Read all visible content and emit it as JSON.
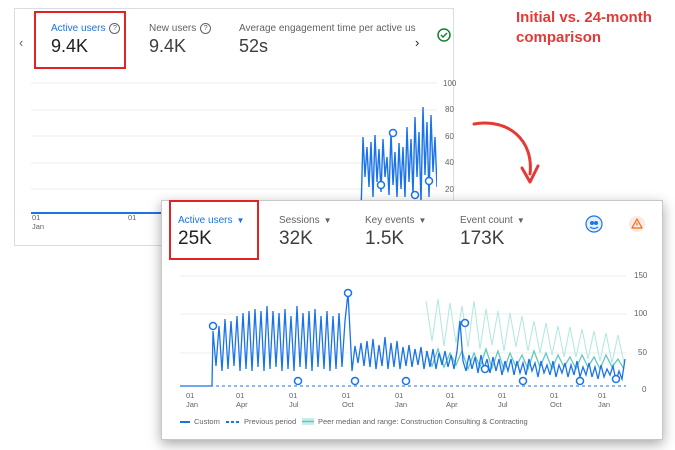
{
  "annotation": {
    "line1": "Initial vs. 24-month",
    "line2": "comparison"
  },
  "colors": {
    "accent": "#1a73e8",
    "highlight": "#e02424",
    "annotation": "#e53935",
    "peer": "#62c9c0"
  },
  "card1": {
    "metrics": [
      {
        "label": "Active users",
        "value": "9.4K",
        "icon": "help-icon"
      },
      {
        "label": "New users",
        "value": "9.4K",
        "icon": "help-icon"
      },
      {
        "label": "Average engagement time per active us",
        "value": "52s"
      }
    ],
    "y_ticks": [
      "100",
      "80",
      "60",
      "40",
      "20"
    ],
    "x_ticks": [
      {
        "day": "01",
        "month": "Jan"
      },
      {
        "day": "01",
        "month": ""
      }
    ],
    "status_icon": "check-circle-icon"
  },
  "card2": {
    "metrics": [
      {
        "label": "Active users",
        "value": "25K"
      },
      {
        "label": "Sessions",
        "value": "32K"
      },
      {
        "label": "Key events",
        "value": "1.5K"
      },
      {
        "label": "Event count",
        "value": "173K"
      }
    ],
    "y_ticks": [
      "150",
      "100",
      "50",
      "0"
    ],
    "x_ticks": [
      {
        "day": "01",
        "month": "Jan"
      },
      {
        "day": "01",
        "month": "Apr"
      },
      {
        "day": "01",
        "month": "Jul"
      },
      {
        "day": "01",
        "month": "Oct"
      },
      {
        "day": "01",
        "month": "Jan"
      },
      {
        "day": "01",
        "month": "Apr"
      },
      {
        "day": "01",
        "month": "Jul"
      },
      {
        "day": "01",
        "month": "Oct"
      },
      {
        "day": "01",
        "month": "Jan"
      }
    ],
    "legend": {
      "custom": "Custom",
      "previous": "Previous period",
      "peer": "Peer median and range: Construction Consulting & Contracting"
    },
    "icons": [
      "insights-icon",
      "warning-icon"
    ]
  }
}
